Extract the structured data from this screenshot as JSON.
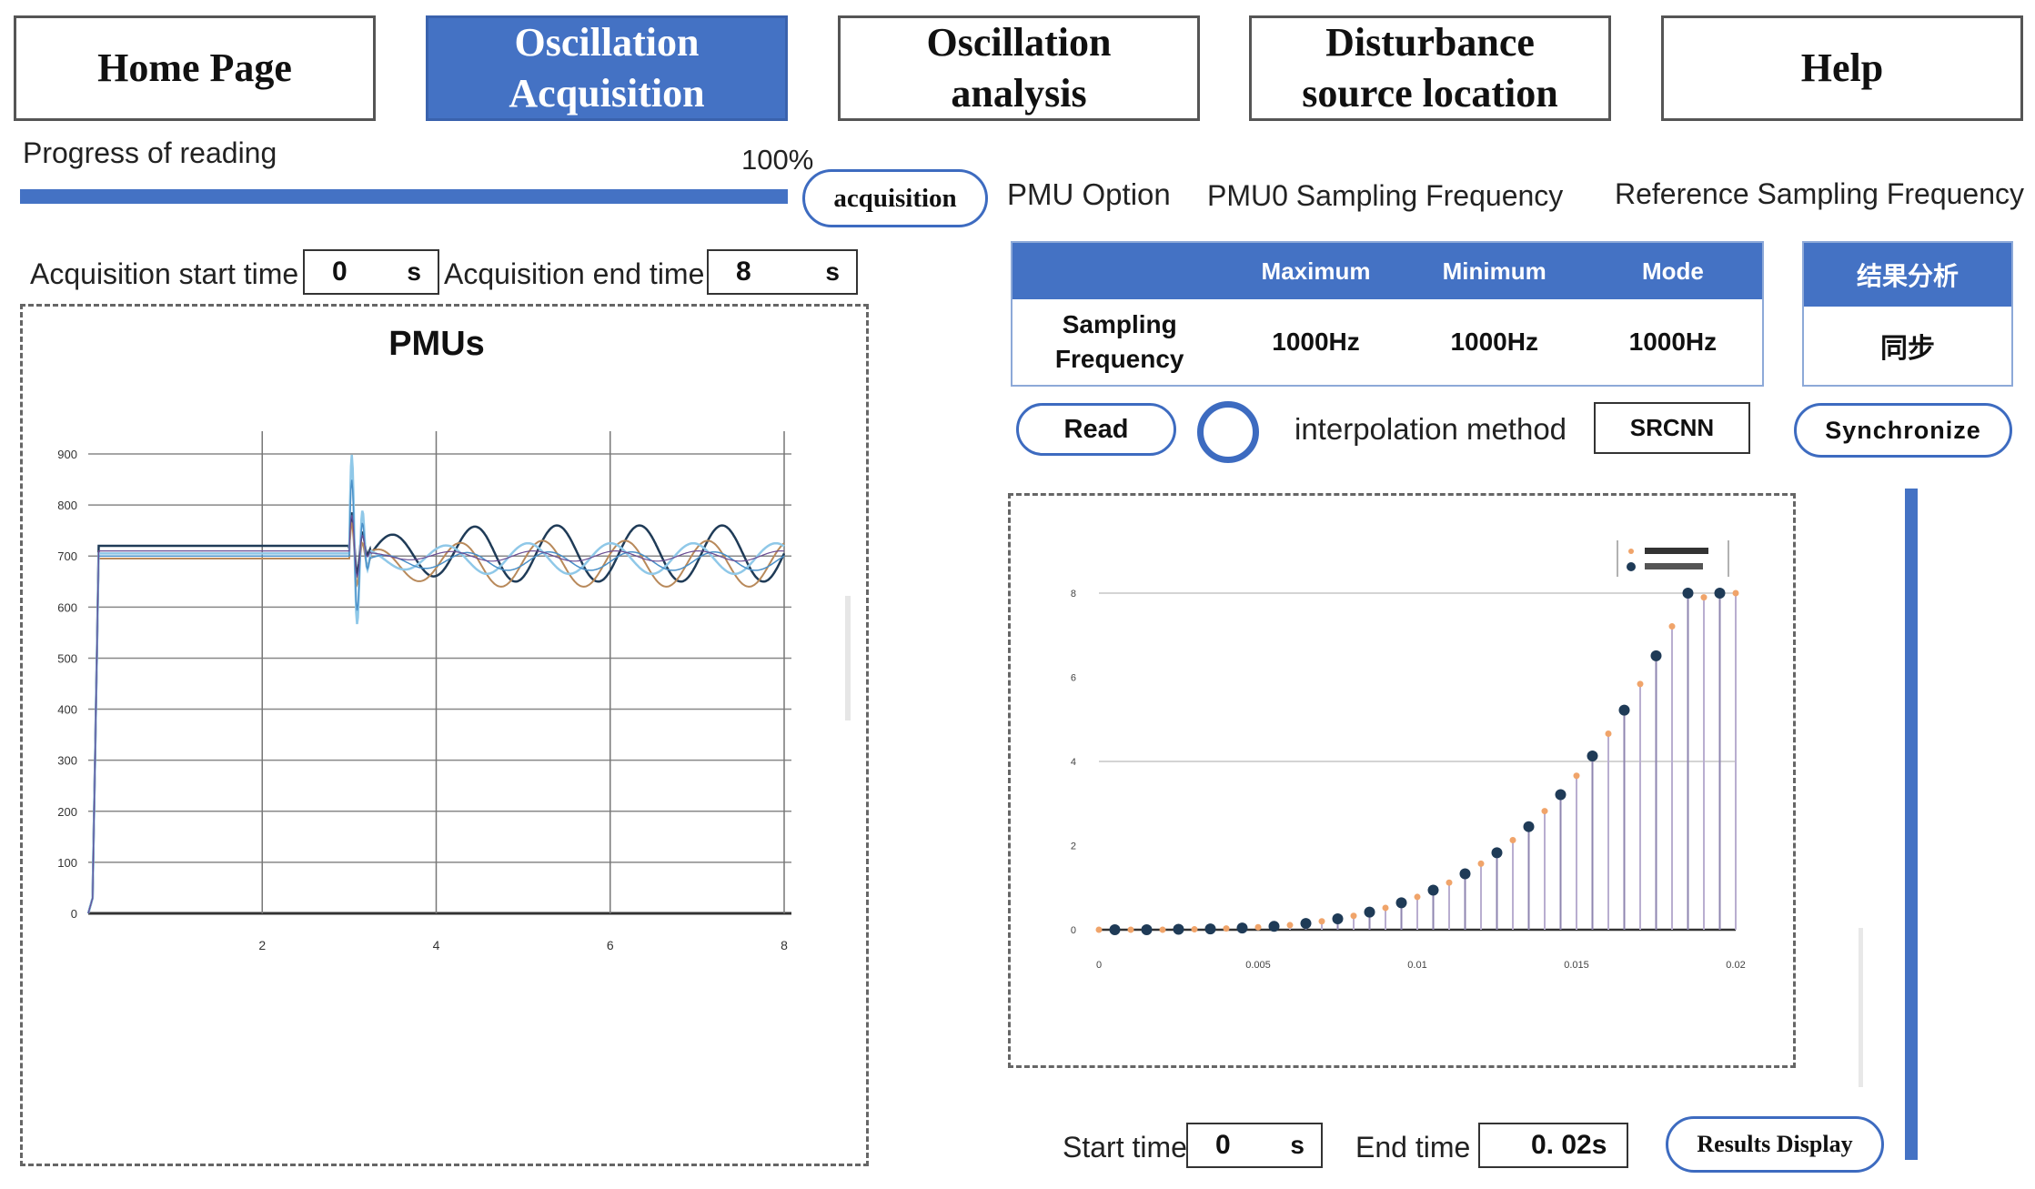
{
  "nav": {
    "home": "Home Page",
    "acq_line1": "Oscillation",
    "acq_line2": "Acquisition",
    "ana_line1": "Oscillation",
    "ana_line2": "analysis",
    "dis_line1": "Disturbance",
    "dis_line2": "source location",
    "help": "Help"
  },
  "progress": {
    "label": "Progress of reading",
    "percent_text": "100%",
    "value": 1.0
  },
  "acquisition_button": "acquisition",
  "pmu_option_label": "PMU Option",
  "pmu0_freq_label": "PMU0 Sampling Frequency",
  "ref_freq_label": "Reference Sampling Frequency",
  "acq_start": {
    "label": "Acquisition start time",
    "value": "0",
    "unit": "s"
  },
  "acq_end": {
    "label": "Acquisition end time",
    "value": "8",
    "unit": "s"
  },
  "freq_table": {
    "headers": [
      "",
      "Maximum",
      "Minimum",
      "Mode"
    ],
    "row_label": "Sampling Frequency",
    "values": [
      "1000Hz",
      "1000Hz",
      "1000Hz"
    ]
  },
  "result_panel": {
    "header": "结果分析",
    "value": "同步"
  },
  "read_button": "Read",
  "interp_label": "interpolation method",
  "interp_value": "SRCNN",
  "sync_button": "Synchronize",
  "bottom": {
    "start_label": "Start time",
    "start_value": "0",
    "start_unit": "s",
    "end_label": "End time",
    "end_value": "0. 02s",
    "results_button": "Results Display"
  },
  "colors": {
    "accent": "#4472c4",
    "series": [
      "#1f3b57",
      "#b8895a",
      "#8fc8e8",
      "#4a90c8",
      "#6a4c93"
    ]
  },
  "chart_data": [
    {
      "type": "line",
      "title": "PMUs",
      "xlim": [
        0,
        8
      ],
      "ylim": [
        0,
        900
      ],
      "x_ticks": [
        "2",
        "4",
        "6",
        "8"
      ],
      "y_ticks": [
        "0",
        "100",
        "200",
        "300",
        "400",
        "500",
        "600",
        "700",
        "800",
        "900"
      ],
      "grid": true,
      "series": [
        {
          "values_desc": "rises from 0 to ~710 at t=0.1, flat until t=3, then disturbance spike (~880/~480) and sustained oscillation 650-780"
        }
      ]
    },
    {
      "type": "scatter",
      "title": "",
      "xlim": [
        0,
        0.02
      ],
      "ylim": [
        0,
        8
      ],
      "x_ticks": [
        "0",
        "0.005",
        "0.01",
        "0.015",
        "0.02"
      ],
      "y_ticks": [
        "0",
        "2",
        "4",
        "6",
        "8"
      ],
      "legend_position": "top-right",
      "series": [
        {
          "marker": "circle-dark",
          "x": [
            0.0005,
            0.0015,
            0.0025,
            0.0035,
            0.0045,
            0.0055,
            0.0065,
            0.0075,
            0.0085,
            0.0095,
            0.0105,
            0.0115,
            0.0125,
            0.0135,
            0.0145,
            0.0155,
            0.0165,
            0.0175,
            0.0185,
            0.0195
          ],
          "y": [
            0.0,
            0.0,
            0.01,
            0.02,
            0.04,
            0.08,
            0.15,
            0.26,
            0.42,
            0.64,
            0.94,
            1.33,
            1.83,
            2.45,
            3.21,
            4.13,
            5.22,
            6.51,
            8.0,
            8.0
          ]
        },
        {
          "marker": "small-orange",
          "x": [
            0.0,
            0.001,
            0.002,
            0.003,
            0.004,
            0.005,
            0.006,
            0.007,
            0.008,
            0.009,
            0.01,
            0.011,
            0.012,
            0.013,
            0.014,
            0.015,
            0.016,
            0.017,
            0.018,
            0.019,
            0.02
          ],
          "y": [
            0.0,
            0.0,
            0.0,
            0.01,
            0.03,
            0.06,
            0.11,
            0.2,
            0.33,
            0.52,
            0.78,
            1.12,
            1.57,
            2.13,
            2.82,
            3.66,
            4.66,
            5.84,
            7.21,
            7.9,
            8.0
          ]
        }
      ]
    }
  ]
}
